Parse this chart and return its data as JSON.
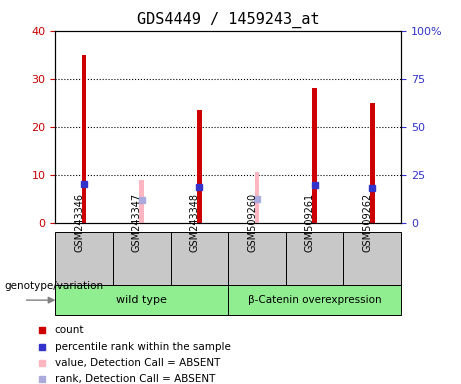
{
  "title": "GDS4449 / 1459243_at",
  "samples": [
    "GSM243346",
    "GSM243347",
    "GSM243348",
    "GSM509260",
    "GSM509261",
    "GSM509262"
  ],
  "count_values": [
    35,
    null,
    23.5,
    null,
    28,
    25
  ],
  "count_absent_values": [
    null,
    9,
    null,
    10.5,
    null,
    null
  ],
  "rank_values": [
    20,
    null,
    18.5,
    null,
    19.5,
    18
  ],
  "rank_absent_values": [
    null,
    12,
    null,
    12.5,
    null,
    null
  ],
  "ylim_left": [
    0,
    40
  ],
  "ylim_right": [
    0,
    100
  ],
  "yticks_left": [
    0,
    10,
    20,
    30,
    40
  ],
  "yticks_right": [
    0,
    25,
    50,
    75,
    100
  ],
  "ytick_labels_right": [
    "0",
    "25",
    "50",
    "75",
    "100%"
  ],
  "count_color": "#CC0000",
  "count_absent_color": "#FFB6C1",
  "rank_color": "#3333CC",
  "rank_absent_color": "#AAAADD",
  "group1_label": "wild type",
  "group2_label": "β-Catenin overexpression",
  "group1_indices": [
    0,
    1,
    2
  ],
  "group2_indices": [
    3,
    4,
    5
  ],
  "group1_color": "#90EE90",
  "group2_color": "#90EE90",
  "bg_color": "#C8C8C8",
  "legend_count": "count",
  "legend_rank": "percentile rank within the sample",
  "legend_absent_value": "value, Detection Call = ABSENT",
  "legend_absent_rank": "rank, Detection Call = ABSENT",
  "genotype_label": "genotype/variation",
  "title_fontsize": 11,
  "tick_fontsize": 8,
  "label_fontsize": 8,
  "bar_width": 0.08,
  "rank_marker_size": 5,
  "rank_absent_marker_size": 4
}
